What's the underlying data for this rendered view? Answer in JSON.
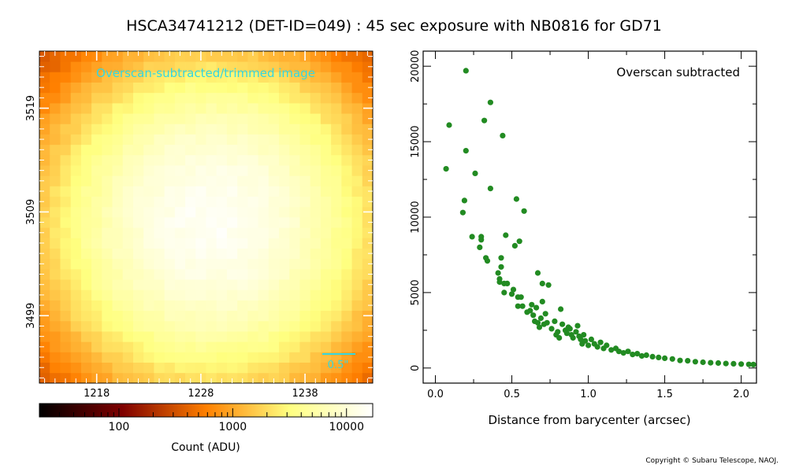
{
  "title": "HSCA34741212 (DET-ID=049) :  45 sec exposure with NB0816 for GD71",
  "copyright": "Copyright © Subaru Telescope, NAOJ.",
  "colors": {
    "accent_label": "#33d6e0",
    "scatter": "#228b22"
  },
  "chart_data": [
    {
      "type": "heatmap",
      "label": "Overscan-subtracted/trimmed image",
      "colormap": "afmhot",
      "grid": {
        "cols": 32,
        "rows": 32,
        "x_start": 1213,
        "y_start": 3493
      },
      "peak": {
        "x": 1229,
        "y": 3508,
        "sigma_pixels": 7.5
      },
      "x_ticks": [
        1218,
        1228,
        1238
      ],
      "y_ticks": [
        3499,
        3509,
        3519
      ],
      "scale_bar_label": "0.5\"",
      "colorbar": {
        "scale": "log",
        "range": [
          20,
          17000
        ],
        "ticks": [
          100,
          1000,
          10000
        ],
        "label": "Count (ADU)"
      }
    },
    {
      "type": "scatter",
      "annotation": "Overscan subtracted",
      "xlabel": "Distance from barycenter (arcsec)",
      "xlim": [
        -0.08,
        2.1
      ],
      "ylim": [
        -1000,
        21000
      ],
      "x_ticks": [
        0.0,
        0.5,
        1.0,
        1.5,
        2.0
      ],
      "y_ticks": [
        0,
        5000,
        10000,
        15000,
        20000
      ],
      "points": [
        [
          0.07,
          13200
        ],
        [
          0.09,
          16100
        ],
        [
          0.18,
          10300
        ],
        [
          0.19,
          11100
        ],
        [
          0.2,
          14400
        ],
        [
          0.2,
          19700
        ],
        [
          0.24,
          8700
        ],
        [
          0.26,
          12900
        ],
        [
          0.29,
          8000
        ],
        [
          0.3,
          8700
        ],
        [
          0.3,
          8500
        ],
        [
          0.32,
          16400
        ],
        [
          0.33,
          7300
        ],
        [
          0.34,
          7100
        ],
        [
          0.36,
          11900
        ],
        [
          0.36,
          17600
        ],
        [
          0.41,
          6300
        ],
        [
          0.42,
          5700
        ],
        [
          0.42,
          5900
        ],
        [
          0.43,
          6700
        ],
        [
          0.43,
          7300
        ],
        [
          0.44,
          15400
        ],
        [
          0.45,
          5600
        ],
        [
          0.45,
          5000
        ],
        [
          0.46,
          8800
        ],
        [
          0.47,
          5600
        ],
        [
          0.5,
          4900
        ],
        [
          0.51,
          5200
        ],
        [
          0.52,
          8100
        ],
        [
          0.53,
          11200
        ],
        [
          0.54,
          4100
        ],
        [
          0.54,
          4700
        ],
        [
          0.55,
          8400
        ],
        [
          0.56,
          4700
        ],
        [
          0.57,
          4100
        ],
        [
          0.58,
          10400
        ],
        [
          0.6,
          3700
        ],
        [
          0.62,
          3800
        ],
        [
          0.63,
          4200
        ],
        [
          0.64,
          3500
        ],
        [
          0.65,
          3100
        ],
        [
          0.66,
          4000
        ],
        [
          0.67,
          6300
        ],
        [
          0.67,
          3000
        ],
        [
          0.68,
          2700
        ],
        [
          0.69,
          3300
        ],
        [
          0.7,
          4400
        ],
        [
          0.7,
          5600
        ],
        [
          0.71,
          2900
        ],
        [
          0.72,
          3600
        ],
        [
          0.73,
          3000
        ],
        [
          0.74,
          5500
        ],
        [
          0.76,
          2600
        ],
        [
          0.78,
          3100
        ],
        [
          0.79,
          2200
        ],
        [
          0.8,
          2400
        ],
        [
          0.81,
          2000
        ],
        [
          0.82,
          3900
        ],
        [
          0.83,
          2900
        ],
        [
          0.85,
          2500
        ],
        [
          0.86,
          2300
        ],
        [
          0.87,
          2700
        ],
        [
          0.88,
          2600
        ],
        [
          0.89,
          2200
        ],
        [
          0.9,
          2000
        ],
        [
          0.92,
          2400
        ],
        [
          0.93,
          2800
        ],
        [
          0.94,
          2100
        ],
        [
          0.95,
          1900
        ],
        [
          0.96,
          1600
        ],
        [
          0.97,
          2200
        ],
        [
          0.98,
          1800
        ],
        [
          1.0,
          1500
        ],
        [
          1.02,
          1900
        ],
        [
          1.04,
          1600
        ],
        [
          1.06,
          1400
        ],
        [
          1.08,
          1700
        ],
        [
          1.1,
          1300
        ],
        [
          1.12,
          1500
        ],
        [
          1.15,
          1200
        ],
        [
          1.18,
          1300
        ],
        [
          1.2,
          1100
        ],
        [
          1.23,
          1000
        ],
        [
          1.26,
          1100
        ],
        [
          1.29,
          900
        ],
        [
          1.32,
          950
        ],
        [
          1.35,
          800
        ],
        [
          1.38,
          850
        ],
        [
          1.42,
          750
        ],
        [
          1.46,
          700
        ],
        [
          1.5,
          650
        ],
        [
          1.55,
          600
        ],
        [
          1.6,
          500
        ],
        [
          1.65,
          480
        ],
        [
          1.7,
          420
        ],
        [
          1.75,
          380
        ],
        [
          1.8,
          350
        ],
        [
          1.85,
          330
        ],
        [
          1.9,
          300
        ],
        [
          1.95,
          280
        ],
        [
          2.0,
          260
        ],
        [
          2.05,
          240
        ],
        [
          2.08,
          230
        ]
      ]
    }
  ]
}
